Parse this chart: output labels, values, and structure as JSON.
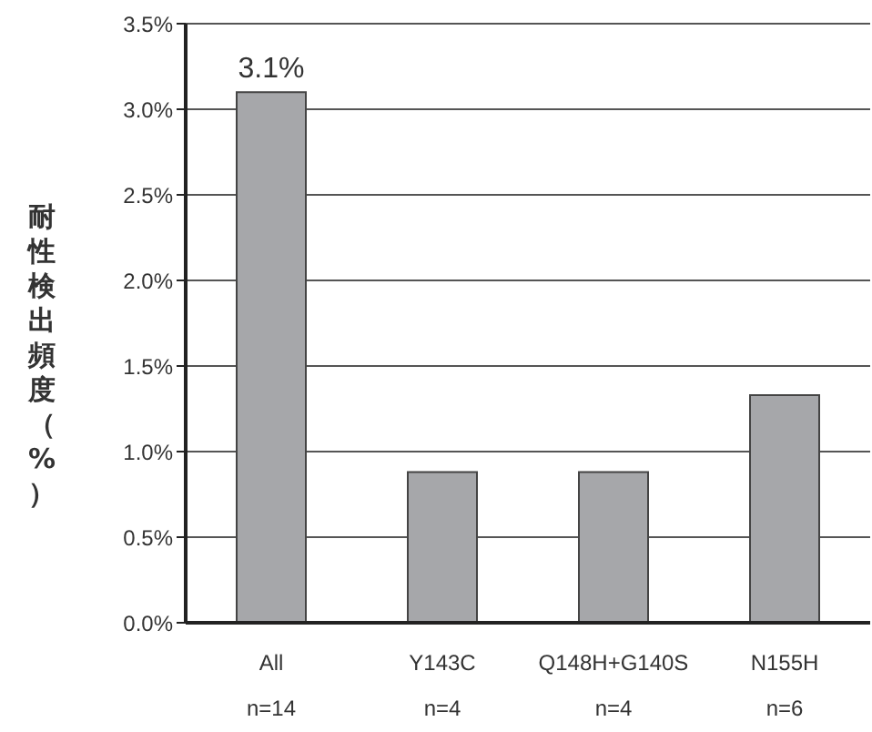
{
  "chart_data": {
    "type": "bar",
    "ylabel": "耐性検出頻度（%）",
    "categories": [
      "All\nn=14",
      "Y143C\nn=4",
      "Q148H+G140S\nn=4",
      "N155H\nn=6"
    ],
    "values": [
      3.1,
      0.88,
      0.88,
      1.33
    ],
    "value_labels": [
      "3.1%",
      null,
      null,
      null
    ],
    "color": "#a6a7aa",
    "ylim": [
      0,
      3.5
    ],
    "yticks": [
      {
        "value": 0,
        "label": "0.0%"
      },
      {
        "value": 0.5,
        "label": "0.5%"
      },
      {
        "value": 1,
        "label": "1.0%"
      },
      {
        "value": 1.5,
        "label": "1.5%"
      },
      {
        "value": 2,
        "label": "2.0%"
      },
      {
        "value": 2.5,
        "label": "2.5%"
      },
      {
        "value": 3,
        "label": "3.0%"
      },
      {
        "value": 3.5,
        "label": "3.5%"
      }
    ],
    "grid": "y"
  }
}
